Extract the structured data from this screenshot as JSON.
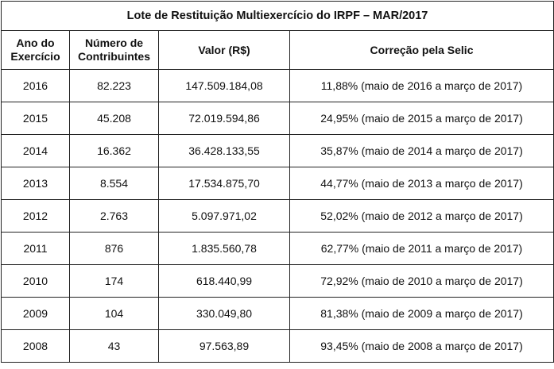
{
  "table": {
    "title": "Lote de Restituição Multiexercício do IRPF – MAR/2017",
    "headers": [
      "Ano do Exercício",
      "Número de Contribuintes",
      "Valor (R$)",
      "Correção pela Selic"
    ],
    "rows": [
      [
        "2016",
        "82.223",
        "147.509.184,08",
        "11,88% (maio de 2016 a março de 2017)"
      ],
      [
        "2015",
        "45.208",
        "72.019.594,86",
        "24,95% (maio de 2015 a março de 2017)"
      ],
      [
        "2014",
        "16.362",
        "36.428.133,55",
        "35,87% (maio de 2014 a março de 2017)"
      ],
      [
        "2013",
        "8.554",
        "17.534.875,70",
        "44,77% (maio de 2013 a março de 2017)"
      ],
      [
        "2012",
        "2.763",
        "5.097.971,02",
        "52,02% (maio de 2012 a março de 2017)"
      ],
      [
        "2011",
        "876",
        "1.835.560,78",
        "62,77% (maio de 2011 a março de 2017)"
      ],
      [
        "2010",
        "174",
        "618.440,99",
        "72,92% (maio de 2010 a março de 2017)"
      ],
      [
        "2009",
        "104",
        "330.049,80",
        "81,38% (maio de 2009 a março de 2017)"
      ],
      [
        "2008",
        "43",
        "97.563,89",
        "93,45% (maio de 2008 a março de 2017)"
      ]
    ]
  }
}
